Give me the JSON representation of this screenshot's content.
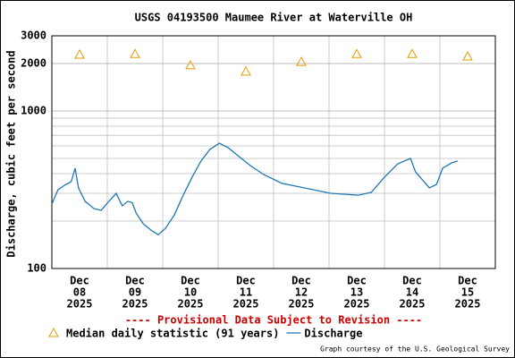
{
  "chart_data": {
    "type": "line",
    "title": "USGS 04193500 Maumee River at Waterville OH",
    "y_label": "Discharge, cubic feet per second",
    "notice": "---- Provisional Data Subject to Revision ----",
    "credit": "Graph courtesy of the U.S. Geological Survey",
    "log_y": true,
    "grid": true,
    "ylim": [
      100,
      3000
    ],
    "yticks": [
      100,
      1000,
      2000,
      3000
    ],
    "minor_yticks": [
      200,
      300,
      400,
      500,
      600,
      700,
      800,
      900
    ],
    "xlim": [
      0,
      8
    ],
    "xticks": [
      1,
      2,
      3,
      4,
      5,
      6,
      7
    ],
    "x_labels": [
      [
        "Dec",
        "08",
        "2025"
      ],
      [
        "Dec",
        "09",
        "2025"
      ],
      [
        "Dec",
        "10",
        "2025"
      ],
      [
        "Dec",
        "11",
        "2025"
      ],
      [
        "Dec",
        "12",
        "2025"
      ],
      [
        "Dec",
        "13",
        "2025"
      ],
      [
        "Dec",
        "14",
        "2025"
      ],
      [
        "Dec",
        "15",
        "2025"
      ]
    ],
    "series": [
      {
        "name": "Median daily statistic (91 years)",
        "color": "#e69b00",
        "marker": "triangle",
        "x": [
          0.5,
          1.5,
          2.5,
          3.5,
          4.5,
          5.5,
          6.5,
          7.5
        ],
        "values": [
          2280,
          2300,
          1950,
          1780,
          2050,
          2300,
          2300,
          2220
        ]
      },
      {
        "name": "Discharge",
        "color": "#1f77b4",
        "marker": "line",
        "x": [
          0,
          0.11,
          0.23,
          0.35,
          0.42,
          0.48,
          0.6,
          0.76,
          0.89,
          1,
          1.16,
          1.27,
          1.37,
          1.45,
          1.52,
          1.65,
          1.81,
          1.92,
          2.05,
          2.21,
          2.37,
          2.53,
          2.69,
          2.85,
          3.02,
          3.18,
          3.34,
          3.58,
          3.82,
          4.15,
          4.55,
          5.03,
          5.52,
          5.76,
          6,
          6.24,
          6.47,
          6.56,
          6.81,
          6.94,
          7.05,
          7.21,
          7.32
        ],
        "values": [
          256,
          316,
          338,
          356,
          433,
          325,
          267,
          240,
          234,
          260,
          300,
          250,
          267,
          262,
          225,
          192,
          173,
          164,
          180,
          219,
          292,
          380,
          481,
          569,
          624,
          585,
          526,
          450,
          395,
          347,
          325,
          300,
          292,
          304,
          380,
          462,
          500,
          411,
          325,
          342,
          433,
          468,
          481
        ]
      }
    ]
  }
}
